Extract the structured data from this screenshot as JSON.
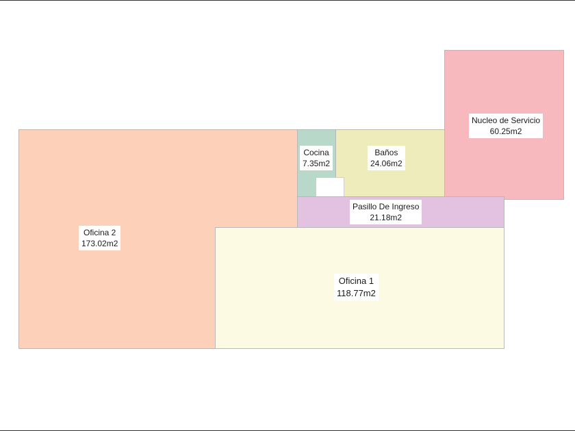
{
  "plan": {
    "rooms": [
      {
        "id": "oficina-2",
        "name": "Oficina 2",
        "area": "173.02m2",
        "color": "#fdd0b9"
      },
      {
        "id": "cocina",
        "name": "Cocina",
        "area": "7.35m2",
        "color": "#b8d8c9"
      },
      {
        "id": "banos",
        "name": "Baños",
        "area": "24.06m2",
        "color": "#eeecbb"
      },
      {
        "id": "nucleo-de-servicio",
        "name": "Nucleo de Servicio",
        "area": "60.25m2",
        "color": "#f7b9bd"
      },
      {
        "id": "pasillo-de-ingreso",
        "name": "Pasillo De Ingreso",
        "area": "21.18m2",
        "color": "#e2c1e1"
      },
      {
        "id": "oficina-1",
        "name": "Oficina 1",
        "area": "118.77m2",
        "color": "#fdfae3"
      }
    ]
  }
}
